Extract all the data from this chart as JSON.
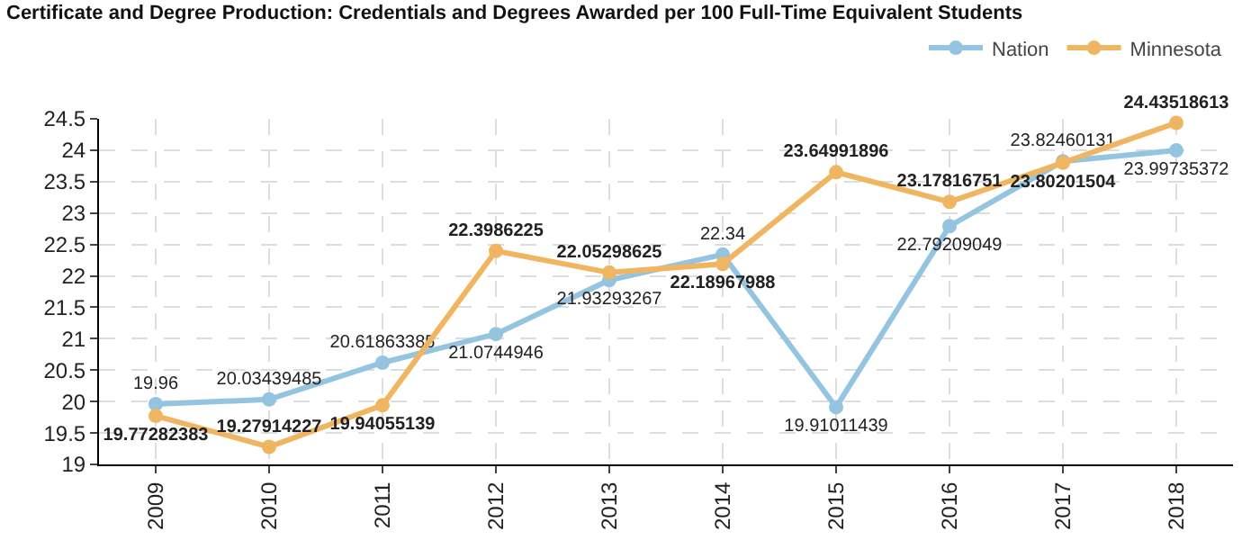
{
  "chart_data": {
    "type": "line",
    "title": "Certificate and Degree Production: Credentials and Degrees Awarded per 100 Full-Time Equivalent Students",
    "categories": [
      "2009",
      "2010",
      "2011",
      "2012",
      "2013",
      "2014",
      "2015",
      "2016",
      "2017",
      "2018"
    ],
    "series": [
      {
        "name": "Nation",
        "color": "#94c4e0",
        "values": [
          19.96,
          20.03439485,
          20.61863385,
          21.0744946,
          21.93293267,
          22.34,
          19.91011439,
          22.79209049,
          23.82460131,
          23.99735372
        ]
      },
      {
        "name": "Minnesota",
        "color": "#f0b560",
        "values": [
          19.77282383,
          19.27914227,
          19.94055139,
          22.3986225,
          22.05298625,
          22.18967988,
          23.64991896,
          23.17816751,
          23.80201504,
          24.43518613
        ]
      }
    ],
    "ylim": [
      19,
      24.5
    ],
    "yticks": [
      19,
      19.5,
      20,
      20.5,
      21,
      21.5,
      22,
      22.5,
      23,
      23.5,
      24,
      24.5
    ],
    "grid": true,
    "legend": "top right",
    "marker": "circle",
    "line_style": "solid",
    "data_labels": true
  }
}
